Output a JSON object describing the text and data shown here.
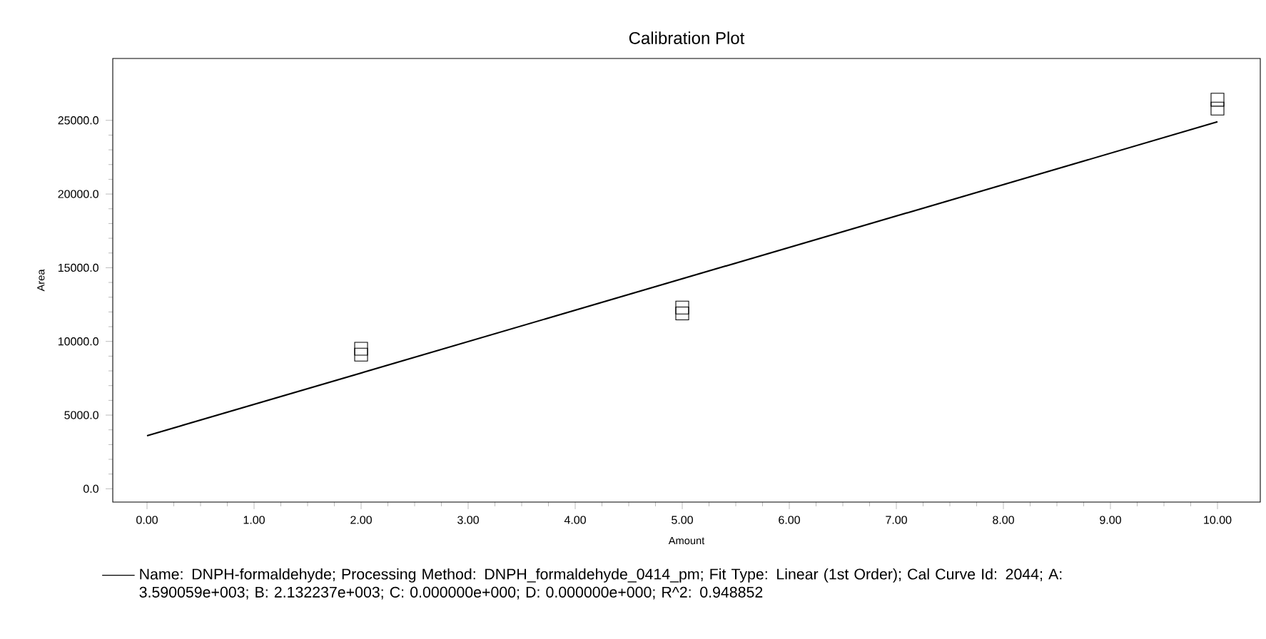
{
  "chart_data": {
    "type": "scatter",
    "title": "Calibration Plot",
    "xlabel": "Amount",
    "ylabel": "Area",
    "xlim": [
      -0.32,
      10.4
    ],
    "ylim": [
      -900,
      29200
    ],
    "xticks": [
      {
        "value": 0,
        "label": "0.00"
      },
      {
        "value": 1,
        "label": "1.00"
      },
      {
        "value": 2,
        "label": "2.00"
      },
      {
        "value": 3,
        "label": "3.00"
      },
      {
        "value": 4,
        "label": "4.00"
      },
      {
        "value": 5,
        "label": "5.00"
      },
      {
        "value": 6,
        "label": "6.00"
      },
      {
        "value": 7,
        "label": "7.00"
      },
      {
        "value": 8,
        "label": "8.00"
      },
      {
        "value": 9,
        "label": "9.00"
      },
      {
        "value": 10,
        "label": "10.00"
      }
    ],
    "yticks": [
      {
        "value": 0,
        "label": "0.0"
      },
      {
        "value": 5000,
        "label": "5000.0"
      },
      {
        "value": 10000,
        "label": "10000.0"
      },
      {
        "value": 15000,
        "label": "15000.0"
      },
      {
        "value": 20000,
        "label": "20000.0"
      },
      {
        "value": 25000,
        "label": "25000.0"
      }
    ],
    "legend": "bottom",
    "series": [
      {
        "color": "#000000",
        "marker": "square",
        "x": [
          2,
          2,
          5,
          5,
          10,
          10
        ],
        "values": [
          9100,
          9500,
          11900,
          12300,
          25800,
          26400
        ]
      },
      {
        "type": "line",
        "name": "Name: DNPH-formaldehyde;  Processing Method: DNPH_formaldehyde_0414_pm;  Fit Type: Linear (1st Order);  Cal Curve Id: 2044;  A: 3.590059e+003;  B: 2.132237e+003;  C: 0.000000e+000;  D: 0.000000e+000;  R^2: 0.948852",
        "color": "#000000",
        "marker": "none",
        "line_style": "solid",
        "x": [
          0,
          10
        ],
        "values": [
          3600,
          24900
        ]
      }
    ]
  }
}
